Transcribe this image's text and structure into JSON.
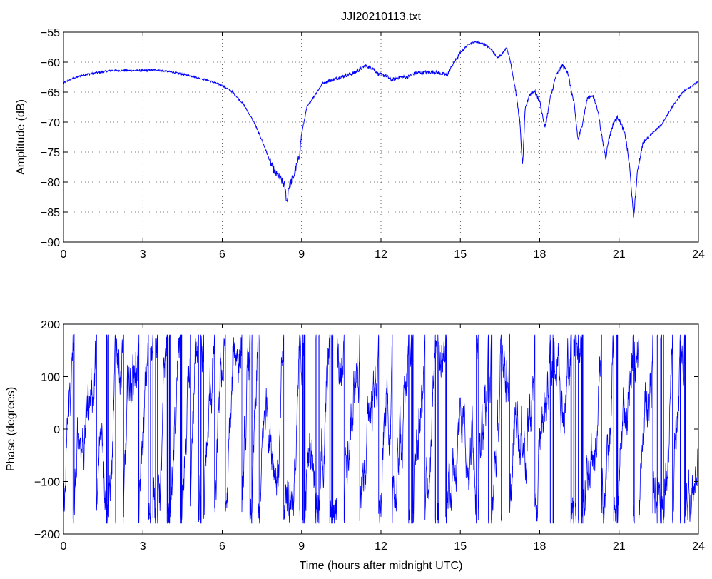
{
  "chart_data": [
    {
      "type": "line",
      "title": "JJI20210113.txt",
      "xlabel": "",
      "ylabel": "Amplitude (dB)",
      "xlim": [
        0,
        24
      ],
      "ylim": [
        -90,
        -55
      ],
      "xticks": [
        0,
        3,
        6,
        9,
        12,
        15,
        18,
        21,
        24
      ],
      "yticks": [
        -55,
        -60,
        -65,
        -70,
        -75,
        -80,
        -85,
        -90
      ],
      "grid": true,
      "color": "#0000ff",
      "series": [
        {
          "values_keyframes": [
            [
              0,
              -63.5
            ],
            [
              0.3,
              -62.8
            ],
            [
              0.7,
              -62.2
            ],
            [
              1.2,
              -61.8
            ],
            [
              1.8,
              -61.4
            ],
            [
              2.5,
              -61.4
            ],
            [
              3.0,
              -61.4
            ],
            [
              3.5,
              -61.3
            ],
            [
              4.0,
              -61.6
            ],
            [
              4.5,
              -62.0
            ],
            [
              5.0,
              -62.5
            ],
            [
              5.5,
              -63.1
            ],
            [
              6.0,
              -63.9
            ],
            [
              6.4,
              -65.0
            ],
            [
              6.8,
              -67.0
            ],
            [
              7.2,
              -70.0
            ],
            [
              7.5,
              -73.0
            ],
            [
              7.8,
              -76.5
            ],
            [
              8.0,
              -78.5
            ],
            [
              8.2,
              -79.5
            ],
            [
              8.35,
              -80.5
            ],
            [
              8.45,
              -83.5
            ],
            [
              8.5,
              -81.0
            ],
            [
              8.7,
              -79.0
            ],
            [
              8.9,
              -76.0
            ],
            [
              9.0,
              -72.0
            ],
            [
              9.2,
              -67.5
            ],
            [
              9.5,
              -65.5
            ],
            [
              9.8,
              -63.5
            ],
            [
              10.2,
              -62.9
            ],
            [
              10.6,
              -62.3
            ],
            [
              11.0,
              -61.8
            ],
            [
              11.4,
              -60.6
            ],
            [
              11.7,
              -61.0
            ],
            [
              11.9,
              -62.0
            ],
            [
              12.2,
              -62.3
            ],
            [
              12.4,
              -63.0
            ],
            [
              12.7,
              -62.5
            ],
            [
              13.0,
              -62.5
            ],
            [
              13.3,
              -61.8
            ],
            [
              13.6,
              -61.7
            ],
            [
              13.9,
              -61.6
            ],
            [
              14.2,
              -61.8
            ],
            [
              14.5,
              -62.2
            ],
            [
              14.7,
              -60.5
            ],
            [
              15.0,
              -58.5
            ],
            [
              15.3,
              -57.0
            ],
            [
              15.6,
              -56.6
            ],
            [
              15.9,
              -57.0
            ],
            [
              16.2,
              -58.0
            ],
            [
              16.4,
              -59.3
            ],
            [
              16.6,
              -58.5
            ],
            [
              16.75,
              -57.5
            ],
            [
              16.9,
              -60.0
            ],
            [
              17.1,
              -65.0
            ],
            [
              17.25,
              -70.0
            ],
            [
              17.35,
              -77.5
            ],
            [
              17.45,
              -68.0
            ],
            [
              17.6,
              -65.5
            ],
            [
              17.8,
              -64.8
            ],
            [
              18.0,
              -66.5
            ],
            [
              18.2,
              -71.0
            ],
            [
              18.4,
              -66.0
            ],
            [
              18.6,
              -62.5
            ],
            [
              18.85,
              -60.5
            ],
            [
              19.05,
              -61.5
            ],
            [
              19.3,
              -67.0
            ],
            [
              19.45,
              -73.0
            ],
            [
              19.6,
              -70.5
            ],
            [
              19.8,
              -66.0
            ],
            [
              20.0,
              -65.5
            ],
            [
              20.2,
              -68.0
            ],
            [
              20.35,
              -72.5
            ],
            [
              20.5,
              -76.0
            ],
            [
              20.6,
              -73.0
            ],
            [
              20.8,
              -70.0
            ],
            [
              20.95,
              -69.2
            ],
            [
              21.1,
              -70.5
            ],
            [
              21.25,
              -72.5
            ],
            [
              21.4,
              -77.5
            ],
            [
              21.55,
              -86.0
            ],
            [
              21.7,
              -78.0
            ],
            [
              21.9,
              -73.5
            ],
            [
              22.2,
              -72.0
            ],
            [
              22.6,
              -70.5
            ],
            [
              23.0,
              -67.5
            ],
            [
              23.4,
              -65.0
            ],
            [
              23.8,
              -63.8
            ],
            [
              24.0,
              -63.3
            ]
          ]
        }
      ]
    },
    {
      "type": "line",
      "title": "",
      "xlabel": "Time (hours after midnight UTC)",
      "ylabel": "Phase (degrees)",
      "xlim": [
        0,
        24
      ],
      "ylim": [
        -200,
        200
      ],
      "xticks": [
        0,
        3,
        6,
        9,
        12,
        15,
        18,
        21,
        24
      ],
      "yticks": [
        200,
        100,
        0,
        -100,
        -200
      ],
      "grid": false,
      "color": "#0000ff",
      "value_range": [
        -180,
        180
      ],
      "series": [
        {
          "values_sample": [
            [
              0,
              -150
            ],
            [
              0.2,
              170
            ],
            [
              0.5,
              -100
            ],
            [
              1.0,
              175
            ],
            [
              1.2,
              -175
            ],
            [
              3.0,
              150
            ],
            [
              6.0,
              100
            ],
            [
              9.0,
              -120
            ],
            [
              12.0,
              160
            ],
            [
              15.0,
              -170
            ],
            [
              18.0,
              170
            ],
            [
              21.0,
              -150
            ],
            [
              24.0,
              0
            ]
          ]
        }
      ]
    }
  ]
}
